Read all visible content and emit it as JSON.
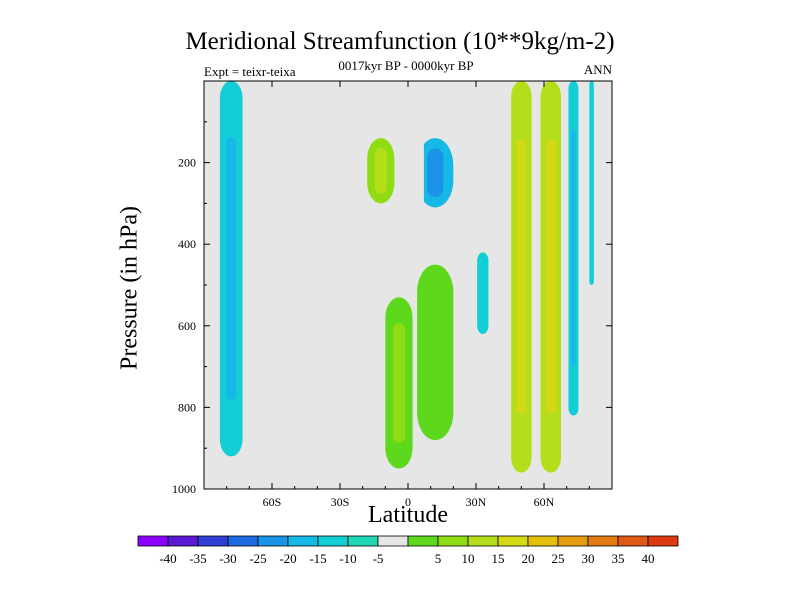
{
  "title": "Meridional Streamfunction (10**9kg/m-2)",
  "subtitle": "0017kyr BP - 0000kyr BP",
  "left_label": "Expt = teixr-teixa",
  "right_label": "ANN",
  "colors": {
    "background_field": "#e6e6e6",
    "levels": [
      "#8b00ff",
      "#5a19d2",
      "#2f3fd6",
      "#1e6ae0",
      "#1b94e8",
      "#16b9e6",
      "#12cfd6",
      "#1fd7b4",
      "#e6e6e6",
      "#5ed81c",
      "#8fdc12",
      "#b5de1a",
      "#d5d815",
      "#e4c00d",
      "#e59c0e",
      "#e37a12",
      "#df5a14",
      "#dd3a12"
    ]
  },
  "chart_data": {
    "type": "contour",
    "title": "Meridional Streamfunction (10**9kg/m-2)",
    "subtitle": "0017kyr BP - 0000kyr BP",
    "xlabel": "Latitude",
    "ylabel": "Pressure (in hPa)",
    "xlim": [
      -90,
      90
    ],
    "ylim": [
      0,
      1000
    ],
    "y_inverted": true,
    "x_ticks": [
      -60,
      -30,
      0,
      30,
      60
    ],
    "x_tick_labels": [
      "60S",
      "30S",
      "0",
      "30N",
      "60N"
    ],
    "y_ticks": [
      200,
      400,
      600,
      800,
      1000
    ],
    "y_tick_labels": [
      "200",
      "400",
      "600",
      "800",
      "1000"
    ],
    "colorbar_labels": [
      "-40",
      "-35",
      "-30",
      "-25",
      "-20",
      "-15",
      "-10",
      "-5",
      "5",
      "10",
      "15",
      "20",
      "25",
      "30",
      "35",
      "40"
    ],
    "features": [
      {
        "lat": -78,
        "p_top": 0,
        "p_bottom": 920,
        "value": -8
      },
      {
        "lat": -12,
        "p_top": 140,
        "p_bottom": 300,
        "value": 10
      },
      {
        "lat": 12,
        "p_top": 140,
        "p_bottom": 310,
        "value": -15
      },
      {
        "lat": 5,
        "p_top": 0,
        "p_bottom": 320,
        "value": 2
      },
      {
        "lat": -4,
        "p_top": 530,
        "p_bottom": 950,
        "value": 8
      },
      {
        "lat": 12,
        "p_top": 450,
        "p_bottom": 880,
        "value": 7
      },
      {
        "lat": 33,
        "p_top": 420,
        "p_bottom": 620,
        "value": -6
      },
      {
        "lat": 50,
        "p_top": 0,
        "p_bottom": 960,
        "value": 15
      },
      {
        "lat": 63,
        "p_top": 0,
        "p_bottom": 960,
        "value": 18
      },
      {
        "lat": 73,
        "p_top": 0,
        "p_bottom": 820,
        "value": -10
      },
      {
        "lat": 81,
        "p_top": 0,
        "p_bottom": 500,
        "value": -6
      }
    ]
  }
}
